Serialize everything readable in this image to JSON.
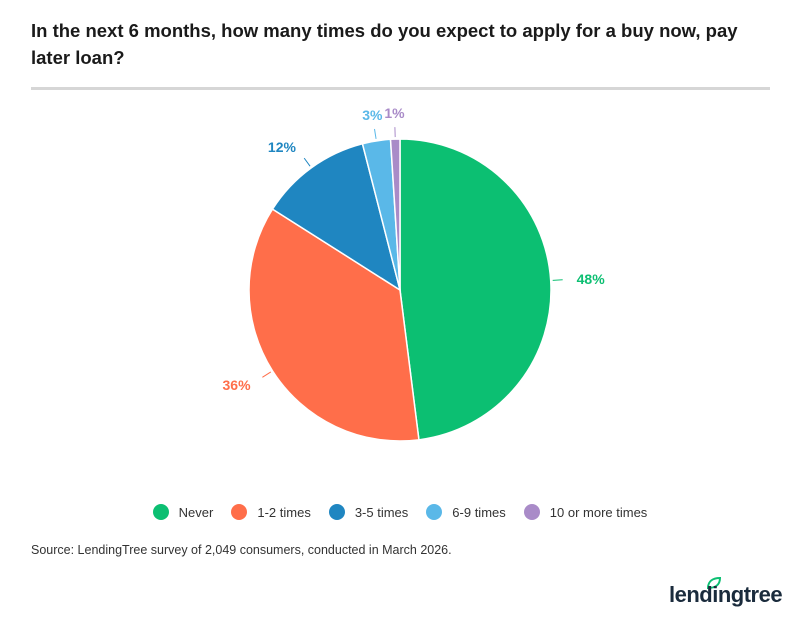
{
  "chart_data": {
    "type": "pie",
    "title": "In the next 6 months, how many times do you expect to apply for a buy now, pay later loan?",
    "slices": [
      {
        "label": "Never",
        "value": 48,
        "data_label": "48%",
        "color": "#0cbf72"
      },
      {
        "label": "1-2 times",
        "value": 36,
        "data_label": "36%",
        "color": "#ff6e4a"
      },
      {
        "label": "3-5 times",
        "value": 12,
        "data_label": "12%",
        "color": "#1f86c1"
      },
      {
        "label": "6-9 times",
        "value": 3,
        "data_label": "3%",
        "color": "#5ab8e8"
      },
      {
        "label": "10 or more times",
        "value": 1,
        "data_label": "1%",
        "color": "#a98bc8"
      }
    ],
    "start": "top",
    "direction": "clockwise",
    "legend": "bottom"
  },
  "source": "Source: LendingTree survey of 2,049 consumers, conducted in March 2026.",
  "logo": {
    "text": "lendingtree",
    "icon": "leaf-icon",
    "color": "#0cbf72"
  }
}
